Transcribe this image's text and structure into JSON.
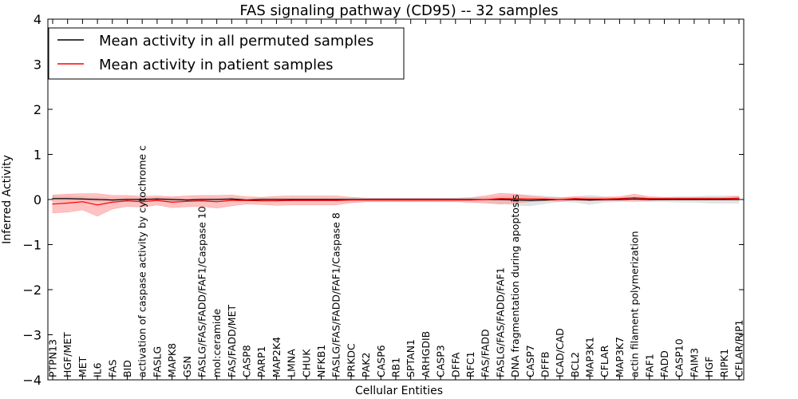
{
  "colors": {
    "permuted": "#000000",
    "patient": "#ff0000",
    "patient_band": "#ff9999",
    "permuted_band": "#d9d9d9",
    "background": "#ffffff"
  },
  "chart_data": {
    "type": "line",
    "title": "FAS signaling pathway (CD95) -- 32 samples",
    "xlabel": "Cellular Entities",
    "ylabel": "Inferred Activity",
    "ylim": [
      -4,
      4
    ],
    "yticks": [
      "−4",
      "−3",
      "−2",
      "−1",
      "0",
      "1",
      "2",
      "3",
      "4"
    ],
    "ytick_values": [
      -4,
      -3,
      -2,
      -1,
      0,
      1,
      2,
      3,
      4
    ],
    "legend_position": "top-left",
    "categories": [
      "PTPN13",
      "HGF/MET",
      "MET",
      "IL6",
      "FAS",
      "BID",
      "activation of caspase activity by cytochrome c",
      "FASLG",
      "MAPK8",
      "GSN",
      "FASLG/FAS/FADD/FAF1/Caspase 10",
      "mol:ceramide",
      "FAS/FADD/MET",
      "CASP8",
      "PARP1",
      "MAP2K4",
      "LMNA",
      "CHUK",
      "NFKB1",
      "FASLG/FAS/FADD/FAF1/Caspase 8",
      "PRKDC",
      "PAK2",
      "CASP6",
      "RB1",
      "SPTAN1",
      "ARHGDIB",
      "CASP3",
      "DFFA",
      "RFC1",
      "FAS/FADD",
      "FASLG/FAS/FADD/FAF1",
      "DNA fragmentation during apoptosis",
      "CASP7",
      "DFFB",
      "ICAD/CAD",
      "BCL2",
      "MAP3K1",
      "CFLAR",
      "MAP3K7",
      "actin filament polymerization",
      "FAF1",
      "FADD",
      "CASP10",
      "FAIM3",
      "HGF",
      "RIPK1",
      "CFLAR/RIP1"
    ],
    "series": [
      {
        "name": "Mean activity in all permuted samples",
        "color": "#000000",
        "values": [
          0.02,
          0.02,
          0.01,
          0.0,
          -0.01,
          0.0,
          0.0,
          0.01,
          0.0,
          -0.01,
          0.0,
          0.0,
          0.01,
          -0.01,
          0.0,
          0.0,
          0.0,
          0.0,
          0.0,
          0.0,
          0.0,
          0.0,
          0.0,
          0.0,
          0.0,
          0.0,
          0.0,
          0.0,
          0.0,
          0.0,
          0.0,
          -0.01,
          -0.02,
          -0.01,
          0.0,
          0.0,
          -0.01,
          0.0,
          0.0,
          0.01,
          0.0,
          0.0,
          0.0,
          0.0,
          0.0,
          0.0,
          0.0
        ],
        "band": [
          0.06,
          0.06,
          0.05,
          0.05,
          0.05,
          0.04,
          0.04,
          0.04,
          0.04,
          0.04,
          0.04,
          0.04,
          0.04,
          0.03,
          0.03,
          0.03,
          0.03,
          0.03,
          0.03,
          0.03,
          0.03,
          0.03,
          0.03,
          0.03,
          0.03,
          0.03,
          0.03,
          0.03,
          0.03,
          0.05,
          0.08,
          0.12,
          0.12,
          0.08,
          0.05,
          0.06,
          0.1,
          0.06,
          0.05,
          0.05,
          0.05,
          0.05,
          0.06,
          0.06,
          0.08,
          0.08,
          0.08
        ]
      },
      {
        "name": "Mean activity in patient samples",
        "color": "#ff0000",
        "values": [
          -0.1,
          -0.08,
          -0.05,
          -0.12,
          -0.06,
          -0.03,
          -0.05,
          -0.02,
          -0.06,
          -0.04,
          -0.03,
          -0.05,
          -0.02,
          -0.02,
          -0.03,
          -0.03,
          -0.02,
          -0.02,
          -0.02,
          -0.02,
          -0.01,
          -0.01,
          -0.01,
          -0.01,
          -0.01,
          -0.01,
          -0.01,
          -0.01,
          -0.01,
          0.0,
          0.02,
          0.02,
          0.01,
          0.01,
          0.0,
          0.02,
          0.01,
          0.01,
          0.02,
          0.04,
          0.02,
          0.02,
          0.02,
          0.02,
          0.02,
          0.02,
          0.03
        ],
        "band": [
          0.2,
          0.2,
          0.18,
          0.25,
          0.15,
          0.12,
          0.12,
          0.1,
          0.12,
          0.12,
          0.12,
          0.14,
          0.12,
          0.08,
          0.08,
          0.1,
          0.1,
          0.1,
          0.1,
          0.1,
          0.06,
          0.04,
          0.04,
          0.04,
          0.04,
          0.04,
          0.04,
          0.04,
          0.05,
          0.08,
          0.12,
          0.1,
          0.06,
          0.04,
          0.04,
          0.04,
          0.04,
          0.04,
          0.04,
          0.08,
          0.04,
          0.03,
          0.03,
          0.03,
          0.03,
          0.03,
          0.04
        ]
      }
    ]
  }
}
